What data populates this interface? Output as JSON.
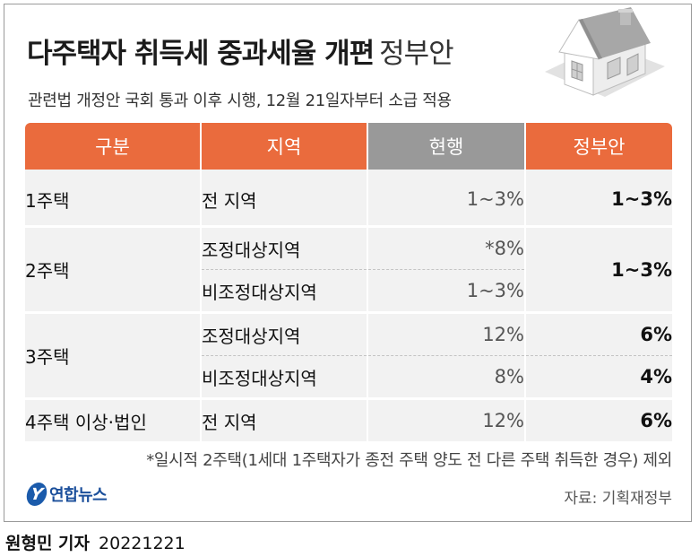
{
  "header": {
    "title": "다주택자 취득세 중과세율 개편",
    "title_suffix": "정부안",
    "subtitle": "관련법 개정안 국회 통과 이후 시행, 12월 21일자부터 소급 적용"
  },
  "table": {
    "columns": [
      "구분",
      "지역",
      "현행",
      "정부안"
    ],
    "rows": [
      {
        "category": "1주택",
        "region": "전 지역",
        "current": "1~3%",
        "proposal": "1~3%"
      },
      {
        "category": "2주택",
        "region": "조정대상지역",
        "current": "*8%",
        "proposal": "1~3%"
      },
      {
        "category": "2주택",
        "region": "비조정대상지역",
        "current": "1~3%",
        "proposal": "1~3%"
      },
      {
        "category": "3주택",
        "region": "조정대상지역",
        "current": "12%",
        "proposal": "6%"
      },
      {
        "category": "3주택",
        "region": "비조정대상지역",
        "current": "8%",
        "proposal": "4%"
      },
      {
        "category": "4주택 이상·법인",
        "region": "전 지역",
        "current": "12%",
        "proposal": "6%"
      }
    ]
  },
  "footnote": "*일시적 2주택(1세대 1주택자가 종전 주택 양도 전 다른 주택 취득한 경우) 제외",
  "logo": {
    "mark": "Y",
    "text": "연합뉴스"
  },
  "source": "자료: 기획재정부",
  "byline": {
    "reporter": "원형민 기자",
    "date": "20221221"
  },
  "colors": {
    "accent": "#ea6b3d",
    "current_header": "#999999",
    "cell_bg": "#f2f2f2",
    "logo_blue": "#1b5bab"
  },
  "icons": [
    "house-illustration",
    "yonhap-logo-icon"
  ]
}
